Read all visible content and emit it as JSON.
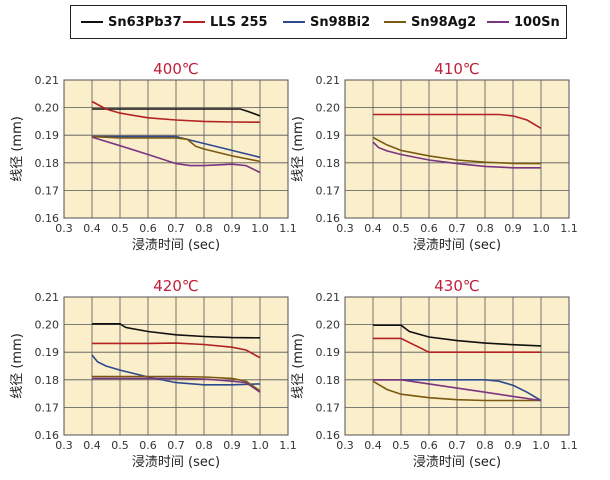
{
  "legend": [
    {
      "name": "Sn63Pb37",
      "color": "#111111"
    },
    {
      "name": "LLS 255",
      "color": "#b22222"
    },
    {
      "name": "Sn98Bi2",
      "color": "#2e4a8c"
    },
    {
      "name": "Sn98Ag2",
      "color": "#7a5a10"
    },
    {
      "name": "100Sn",
      "color": "#7a3580"
    }
  ],
  "chart_data": [
    {
      "type": "line",
      "title": "400℃",
      "xlabel": "浸渍时间 (sec)",
      "ylabel": "线径 (mm)",
      "xlim": [
        0.3,
        1.1
      ],
      "ylim": [
        0.16,
        0.21
      ],
      "xticks": [
        "0.3",
        "0.4",
        "0.5",
        "0.6",
        "0.7",
        "0.8",
        "0.9",
        "1.0",
        "1.1"
      ],
      "yticks": [
        "0.16",
        "0.17",
        "0.18",
        "0.19",
        "0.20",
        "0.21"
      ],
      "grid": true,
      "series": [
        {
          "name": "Sn63Pb37",
          "color": "#111111",
          "x": [
            0.4,
            0.5,
            0.6,
            0.7,
            0.8,
            0.9,
            0.93,
            0.96,
            1.0
          ],
          "y": [
            0.1995,
            0.1995,
            0.1995,
            0.1995,
            0.1995,
            0.1995,
            0.1995,
            0.1985,
            0.197
          ]
        },
        {
          "name": "LLS 255",
          "color": "#b22222",
          "x": [
            0.4,
            0.45,
            0.5,
            0.6,
            0.7,
            0.8,
            0.9,
            1.0
          ],
          "y": [
            0.2022,
            0.1995,
            0.198,
            0.1963,
            0.1955,
            0.195,
            0.1948,
            0.1947
          ]
        },
        {
          "name": "Sn98Bi2",
          "color": "#2e4a8c",
          "x": [
            0.4,
            0.5,
            0.6,
            0.7,
            0.72,
            0.8,
            0.9,
            1.0
          ],
          "y": [
            0.1895,
            0.1895,
            0.1895,
            0.1895,
            0.189,
            0.187,
            0.1845,
            0.182
          ]
        },
        {
          "name": "Sn98Ag2",
          "color": "#7a5a10",
          "x": [
            0.4,
            0.5,
            0.6,
            0.7,
            0.74,
            0.77,
            0.8,
            0.9,
            1.0
          ],
          "y": [
            0.1895,
            0.189,
            0.189,
            0.189,
            0.1885,
            0.186,
            0.185,
            0.1825,
            0.1805
          ]
        },
        {
          "name": "100Sn",
          "color": "#7a3580",
          "x": [
            0.4,
            0.5,
            0.6,
            0.7,
            0.75,
            0.8,
            0.9,
            0.95,
            1.0
          ],
          "y": [
            0.1893,
            0.1862,
            0.183,
            0.1797,
            0.179,
            0.179,
            0.1795,
            0.179,
            0.1765
          ]
        }
      ]
    },
    {
      "type": "line",
      "title": "410℃",
      "xlabel": "浸渍时间 (sec)",
      "ylabel": "线径 (mm)",
      "xlim": [
        0.3,
        1.1
      ],
      "ylim": [
        0.16,
        0.21
      ],
      "xticks": [
        "0.3",
        "0.4",
        "0.5",
        "0.6",
        "0.7",
        "0.8",
        "0.9",
        "1.0",
        "1.1"
      ],
      "yticks": [
        "0.16",
        "0.17",
        "0.18",
        "0.19",
        "0.20",
        "0.21"
      ],
      "grid": true,
      "series": [
        {
          "name": "LLS 255",
          "color": "#b22222",
          "x": [
            0.4,
            0.5,
            0.6,
            0.7,
            0.8,
            0.85,
            0.9,
            0.95,
            1.0
          ],
          "y": [
            0.1975,
            0.1975,
            0.1975,
            0.1975,
            0.1975,
            0.1975,
            0.197,
            0.1955,
            0.1925
          ]
        },
        {
          "name": "Sn98Ag2",
          "color": "#7a5a10",
          "x": [
            0.4,
            0.45,
            0.5,
            0.6,
            0.7,
            0.8,
            0.9,
            1.0
          ],
          "y": [
            0.1892,
            0.1865,
            0.1845,
            0.1825,
            0.181,
            0.1802,
            0.1798,
            0.1797
          ]
        },
        {
          "name": "100Sn",
          "color": "#7a3580",
          "x": [
            0.4,
            0.42,
            0.45,
            0.5,
            0.6,
            0.7,
            0.8,
            0.9,
            1.0
          ],
          "y": [
            0.1875,
            0.1855,
            0.1843,
            0.183,
            0.181,
            0.1797,
            0.1787,
            0.1782,
            0.1782
          ]
        }
      ]
    },
    {
      "type": "line",
      "title": "420℃",
      "xlabel": "浸渍时间 (sec)",
      "ylabel": "线径 (mm)",
      "xlim": [
        0.3,
        1.1
      ],
      "ylim": [
        0.16,
        0.21
      ],
      "xticks": [
        "0.3",
        "0.4",
        "0.5",
        "0.6",
        "0.7",
        "0.8",
        "0.9",
        "1.0",
        "1.1"
      ],
      "yticks": [
        "0.16",
        "0.17",
        "0.18",
        "0.19",
        "0.20",
        "0.21"
      ],
      "grid": true,
      "series": [
        {
          "name": "Sn63Pb37",
          "color": "#111111",
          "x": [
            0.4,
            0.5,
            0.52,
            0.6,
            0.7,
            0.8,
            0.9,
            1.0
          ],
          "y": [
            0.2003,
            0.2003,
            0.199,
            0.1975,
            0.1963,
            0.1957,
            0.1953,
            0.1952
          ]
        },
        {
          "name": "LLS 255",
          "color": "#b22222",
          "x": [
            0.4,
            0.5,
            0.6,
            0.7,
            0.8,
            0.9,
            0.95,
            1.0
          ],
          "y": [
            0.1932,
            0.1932,
            0.1932,
            0.1933,
            0.1928,
            0.1918,
            0.1908,
            0.188
          ]
        },
        {
          "name": "Sn98Bi2",
          "color": "#2e4a8c",
          "x": [
            0.4,
            0.42,
            0.45,
            0.5,
            0.6,
            0.7,
            0.8,
            0.9,
            1.0
          ],
          "y": [
            0.189,
            0.1865,
            0.185,
            0.1835,
            0.181,
            0.179,
            0.1782,
            0.1782,
            0.1785
          ]
        },
        {
          "name": "Sn98Ag2",
          "color": "#7a5a10",
          "x": [
            0.4,
            0.5,
            0.6,
            0.7,
            0.8,
            0.9,
            0.95,
            1.0
          ],
          "y": [
            0.1812,
            0.1812,
            0.1812,
            0.1812,
            0.181,
            0.1805,
            0.1795,
            0.176
          ]
        },
        {
          "name": "100Sn",
          "color": "#7a3580",
          "x": [
            0.4,
            0.5,
            0.6,
            0.7,
            0.8,
            0.9,
            0.95,
            1.0
          ],
          "y": [
            0.1805,
            0.1805,
            0.1805,
            0.1805,
            0.1803,
            0.1795,
            0.179,
            0.1755
          ]
        }
      ]
    },
    {
      "type": "line",
      "title": "430℃",
      "xlabel": "浸渍时间 (sec)",
      "ylabel": "线径 (mm)",
      "xlim": [
        0.3,
        1.1
      ],
      "ylim": [
        0.16,
        0.21
      ],
      "xticks": [
        "0.3",
        "0.4",
        "0.5",
        "0.6",
        "0.7",
        "0.8",
        "0.9",
        "1.0",
        "1.1"
      ],
      "yticks": [
        "0.16",
        "0.17",
        "0.18",
        "0.19",
        "0.20",
        "0.21"
      ],
      "grid": true,
      "series": [
        {
          "name": "Sn63Pb37",
          "color": "#111111",
          "x": [
            0.4,
            0.5,
            0.53,
            0.6,
            0.7,
            0.8,
            0.9,
            1.0
          ],
          "y": [
            0.1998,
            0.1998,
            0.1975,
            0.1955,
            0.1942,
            0.1933,
            0.1927,
            0.1923
          ]
        },
        {
          "name": "LLS 255",
          "color": "#b22222",
          "x": [
            0.4,
            0.5,
            0.6,
            0.7,
            0.8,
            0.9,
            1.0
          ],
          "y": [
            0.195,
            0.195,
            0.19,
            0.19,
            0.19,
            0.19,
            0.19
          ]
        },
        {
          "name": "Sn98Bi2",
          "color": "#2e4a8c",
          "x": [
            0.4,
            0.5,
            0.6,
            0.7,
            0.8,
            0.85,
            0.9,
            0.95,
            1.0
          ],
          "y": [
            0.18,
            0.18,
            0.18,
            0.18,
            0.18,
            0.1795,
            0.178,
            0.1755,
            0.1725
          ]
        },
        {
          "name": "Sn98Ag2",
          "color": "#7a5a10",
          "x": [
            0.4,
            0.45,
            0.5,
            0.6,
            0.7,
            0.8,
            0.9,
            1.0
          ],
          "y": [
            0.1795,
            0.1765,
            0.1748,
            0.1735,
            0.1728,
            0.1725,
            0.1725,
            0.1725
          ]
        },
        {
          "name": "100Sn",
          "color": "#7a3580",
          "x": [
            0.4,
            0.5,
            0.6,
            0.7,
            0.8,
            0.9,
            1.0
          ],
          "y": [
            0.18,
            0.18,
            0.1785,
            0.177,
            0.1755,
            0.174,
            0.1725
          ]
        }
      ]
    }
  ]
}
